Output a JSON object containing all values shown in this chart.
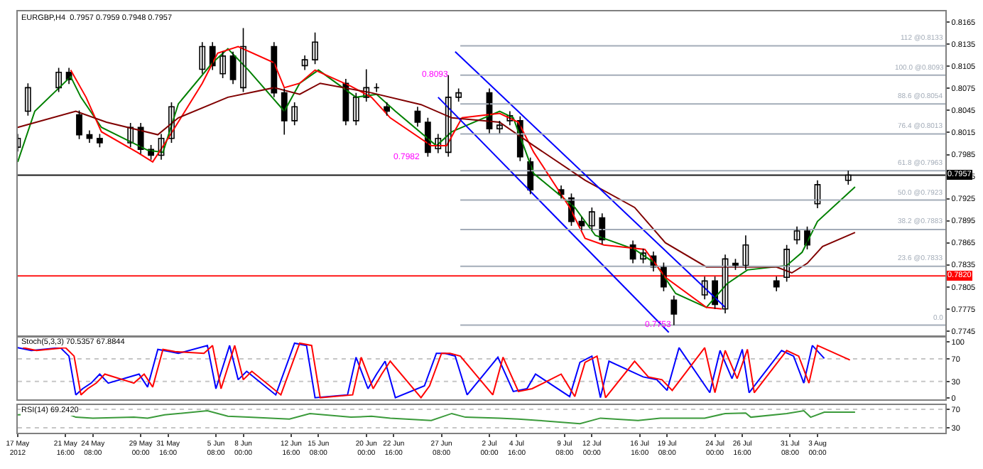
{
  "chart_data": [
    {
      "type": "candlestick",
      "title": "EURGBP,H4  0.7957 0.7959 0.7948 0.7957",
      "xlim": [
        "2012-05-17T00:00",
        "2012-08-15T12:00"
      ],
      "ylim": [
        0.7739,
        0.818
      ],
      "tick_labels": "y",
      "yticks": [
        0.8165,
        0.8135,
        0.8105,
        0.8075,
        0.8045,
        0.8015,
        0.7985,
        0.7955,
        0.7925,
        0.7895,
        0.7865,
        0.7835,
        0.7805,
        0.7775,
        0.7745
      ],
      "x": [
        "2012-05-17",
        "2012-05-18",
        "2012-05-21",
        "2012-05-22",
        "2012-05-23",
        "2012-05-24",
        "2012-05-25",
        "2012-05-28",
        "2012-05-29",
        "2012-05-30",
        "2012-05-31",
        "2012-06-01",
        "2012-06-04",
        "2012-06-05",
        "2012-06-06",
        "2012-06-07",
        "2012-06-08",
        "2012-06-11",
        "2012-06-12",
        "2012-06-13",
        "2012-06-14",
        "2012-06-15",
        "2012-06-18",
        "2012-06-19",
        "2012-06-20",
        "2012-06-21",
        "2012-06-22",
        "2012-06-25",
        "2012-06-26",
        "2012-06-27",
        "2012-06-28",
        "2012-06-29",
        "2012-07-02",
        "2012-07-03",
        "2012-07-04",
        "2012-07-05",
        "2012-07-06",
        "2012-07-09",
        "2012-07-10",
        "2012-07-11",
        "2012-07-12",
        "2012-07-13",
        "2012-07-16",
        "2012-07-17",
        "2012-07-18",
        "2012-07-19",
        "2012-07-20",
        "2012-07-23",
        "2012-07-24",
        "2012-07-25",
        "2012-07-26",
        "2012-07-27",
        "2012-07-30",
        "2012-07-31",
        "2012-08-01",
        "2012-08-02",
        "2012-08-03",
        "2012-08-06"
      ],
      "ohlc": [
        [
          0.7995,
          0.8013,
          0.7989,
          0.8007
        ],
        [
          0.8044,
          0.8082,
          0.8038,
          0.8076
        ],
        [
          0.8076,
          0.8103,
          0.807,
          0.8097
        ],
        [
          0.8097,
          0.8103,
          0.8081,
          0.8087
        ],
        [
          0.8039,
          0.8045,
          0.8006,
          0.8012
        ],
        [
          0.8012,
          0.8018,
          0.8001,
          0.8007
        ],
        [
          0.8007,
          0.8013,
          0.7995,
          0.8001
        ],
        [
          0.8001,
          0.8028,
          0.7995,
          0.8022
        ],
        [
          0.8022,
          0.8028,
          0.7986,
          0.7992
        ],
        [
          0.7992,
          0.7998,
          0.7978,
          0.7984
        ],
        [
          0.7984,
          0.8013,
          0.7978,
          0.8007
        ],
        [
          0.8007,
          0.8056,
          0.8001,
          0.805
        ],
        [
          0.8101,
          0.8138,
          0.8095,
          0.8132
        ],
        [
          0.8132,
          0.8138,
          0.81,
          0.8106
        ],
        [
          0.8095,
          0.8125,
          0.8089,
          0.8119
        ],
        [
          0.8119,
          0.8125,
          0.8081,
          0.8087
        ],
        [
          0.8076,
          0.8157,
          0.807,
          0.8132
        ],
        [
          0.8132,
          0.8138,
          0.8063,
          0.8069
        ],
        [
          0.8069,
          0.8075,
          0.8012,
          0.8031
        ],
        [
          0.8031,
          0.8056,
          0.8025,
          0.805
        ],
        [
          0.8106,
          0.812,
          0.81,
          0.8114
        ],
        [
          0.8114,
          0.8151,
          0.8108,
          0.8138
        ],
        [
          0.8082,
          0.8088,
          0.8025,
          0.8031
        ],
        [
          0.8031,
          0.8069,
          0.8025,
          0.8063
        ],
        [
          0.8063,
          0.8101,
          0.8057,
          0.8076
        ],
        [
          0.8076,
          0.8082,
          0.807,
          0.8076
        ],
        [
          0.805,
          0.8056,
          0.8038,
          0.8044
        ],
        [
          0.8044,
          0.805,
          0.8023,
          0.8029
        ],
        [
          0.8029,
          0.8035,
          0.7982,
          0.7988
        ],
        [
          0.7993,
          0.8013,
          0.7987,
          0.8007
        ],
        [
          0.7988,
          0.8093,
          0.7982,
          0.8063
        ],
        [
          0.8063,
          0.8075,
          0.8057,
          0.8069
        ],
        [
          0.8069,
          0.8075,
          0.8014,
          0.802
        ],
        [
          0.802,
          0.8031,
          0.8014,
          0.8025
        ],
        [
          0.8031,
          0.8044,
          0.8025,
          0.8038
        ],
        [
          0.8031,
          0.8037,
          0.7976,
          0.7982
        ],
        [
          0.7975,
          0.7981,
          0.7931,
          0.7937
        ],
        [
          0.7937,
          0.7943,
          0.7925,
          0.7931
        ],
        [
          0.7926,
          0.7932,
          0.7888,
          0.7894
        ],
        [
          0.7894,
          0.79,
          0.7882,
          0.7888
        ],
        [
          0.7888,
          0.7913,
          0.7882,
          0.7907
        ],
        [
          0.7899,
          0.7905,
          0.7863,
          0.7869
        ],
        [
          0.7862,
          0.7868,
          0.7837,
          0.7843
        ],
        [
          0.7843,
          0.7857,
          0.7837,
          0.7851
        ],
        [
          0.7847,
          0.7853,
          0.7826,
          0.7832
        ],
        [
          0.7832,
          0.7838,
          0.7799,
          0.7805
        ],
        [
          0.7787,
          0.7793,
          0.7753,
          0.7768
        ],
        [
          0.7794,
          0.7819,
          0.7788,
          0.7813
        ],
        [
          0.7813,
          0.7819,
          0.7775,
          0.7781
        ],
        [
          0.7775,
          0.7849,
          0.7769,
          0.7843
        ],
        [
          0.7837,
          0.7843,
          0.7828,
          0.7834
        ],
        [
          0.7834,
          0.7875,
          0.7828,
          0.7862
        ],
        [
          0.7813,
          0.7819,
          0.7799,
          0.7805
        ],
        [
          0.7818,
          0.7862,
          0.7812,
          0.7856
        ],
        [
          0.7869,
          0.7887,
          0.7863,
          0.7881
        ],
        [
          0.7881,
          0.7887,
          0.7856,
          0.7862
        ],
        [
          0.7918,
          0.795,
          0.7912,
          0.7944
        ],
        [
          0.795,
          0.7963,
          0.7944,
          0.7957
        ]
      ],
      "series": [
        {
          "type": "line",
          "color": "#008000",
          "x": [
            "2012-05-17T00:00",
            "2012-05-18T16:00",
            "2012-05-22T04:00",
            "2012-05-23T04:00",
            "2012-05-25T04:00",
            "2012-05-29T16:00",
            "2012-05-31T04:00",
            "2012-06-01T16:00",
            "2012-06-05T00:00",
            "2012-06-06T12:00",
            "2012-06-08T12:00",
            "2012-06-12T00:00",
            "2012-06-13T12:00",
            "2012-06-15T08:00",
            "2012-06-19T00:00",
            "2012-06-21T00:00",
            "2012-06-22T20:00",
            "2012-06-26T20:00",
            "2012-06-28T08:00",
            "2012-07-03T00:00",
            "2012-07-04T08:00",
            "2012-07-06T08:00",
            "2012-07-10T08:00",
            "2012-07-12T08:00",
            "2012-07-16T04:00",
            "2012-07-18T04:00",
            "2012-07-20T04:00",
            "2012-07-23T04:00",
            "2012-07-25T04:00",
            "2012-07-27T04:00",
            "2012-07-31T00:00",
            "2012-08-01T12:00",
            "2012-08-03T00:00",
            "2012-08-06T16:00"
          ],
          "values": [
            0.7975,
            0.8044,
            0.8091,
            0.8063,
            0.8022,
            0.7991,
            0.7988,
            0.8054,
            0.811,
            0.8129,
            0.81,
            0.8044,
            0.8082,
            0.81,
            0.8063,
            0.8067,
            0.8044,
            0.7997,
            0.8016,
            0.8044,
            0.8035,
            0.7959,
            0.7913,
            0.7875,
            0.7856,
            0.7837,
            0.7796,
            0.7777,
            0.7809,
            0.7828,
            0.7834,
            0.7852,
            0.7894,
            0.7941
          ]
        },
        {
          "type": "line",
          "color": "#ff0000",
          "x": [
            "2012-05-22T04:00",
            "2012-05-23T16:00",
            "2012-05-25T04:00",
            "2012-05-28T16:00",
            "2012-05-30T04:00",
            "2012-05-31T16:00",
            "2012-06-04T00:00",
            "2012-06-05T12:00",
            "2012-06-07T12:00",
            "2012-06-11T00:00",
            "2012-06-12T00:00",
            "2012-06-13T12:00",
            "2012-06-15T00:00",
            "2012-06-18T12:00",
            "2012-06-20T12:00",
            "2012-06-22T08:00",
            "2012-06-26T08:00",
            "2012-06-27T20:00",
            "2012-06-29T08:00",
            "2012-07-03T00:00",
            "2012-07-04T20:00",
            "2012-07-06T08:00",
            "2012-07-09T20:00",
            "2012-07-11T08:00",
            "2012-07-13T04:00",
            "2012-07-17T04:00",
            "2012-07-19T04:00",
            "2012-07-23T04:00",
            "2012-07-24T16:00"
          ],
          "values": [
            0.81,
            0.8063,
            0.8016,
            0.7988,
            0.7975,
            0.8007,
            0.8082,
            0.8123,
            0.8132,
            0.811,
            0.8076,
            0.8082,
            0.81,
            0.8078,
            0.8063,
            0.8035,
            0.7997,
            0.7997,
            0.8035,
            0.8041,
            0.8029,
            0.7988,
            0.7913,
            0.7871,
            0.7862,
            0.7856,
            0.7818,
            0.7777,
            0.7775
          ]
        },
        {
          "type": "line",
          "color": "#800000",
          "x": [
            "2012-05-17T00:00",
            "2012-05-22T16:00",
            "2012-05-25T16:00",
            "2012-05-30T16:00",
            "2012-06-01T16:00",
            "2012-06-06T12:00",
            "2012-06-11T00:00",
            "2012-06-13T12:00",
            "2012-06-15T12:00",
            "2012-06-20T12:00",
            "2012-06-25T08:00",
            "2012-06-28T08:00",
            "2012-07-03T00:00",
            "2012-07-06T08:00",
            "2012-07-11T08:00",
            "2012-07-16T04:00",
            "2012-07-19T04:00",
            "2012-07-23T04:00",
            "2012-07-25T04:00",
            "2012-07-30T00:00",
            "2012-07-31T12:00",
            "2012-08-02T00:00",
            "2012-08-03T12:00",
            "2012-08-06T16:00"
          ],
          "values": [
            0.8022,
            0.8044,
            0.8029,
            0.8012,
            0.8035,
            0.8063,
            0.8076,
            0.8067,
            0.8082,
            0.8069,
            0.8053,
            0.8035,
            0.8029,
            0.7997,
            0.795,
            0.7913,
            0.7865,
            0.7832,
            0.7832,
            0.7832,
            0.7824,
            0.7837,
            0.786,
            0.7879
          ]
        },
        {
          "type": "line",
          "color": "#0000ff",
          "x": [
            "2012-06-28T16:00",
            "2012-07-25T00:00"
          ],
          "values": [
            0.8125,
            0.7777
          ]
        },
        {
          "type": "line",
          "color": "#0000ff",
          "x": [
            "2012-06-27T00:00",
            "2012-07-19T12:00"
          ],
          "values": [
            0.8063,
            0.7743
          ]
        },
        {
          "type": "line",
          "color": "#a3acb8",
          "name": "0.0",
          "x": [
            "2012-06-29T04:00",
            "2012-08-15T12:00"
          ],
          "values": [
            0.7753,
            0.7753
          ]
        },
        {
          "type": "line",
          "color": "#a3acb8",
          "name": "23.6 @0.7833",
          "x": [
            "2012-06-29T04:00",
            "2012-08-15T12:00"
          ],
          "values": [
            0.7833,
            0.7833
          ]
        },
        {
          "type": "line",
          "color": "#a3acb8",
          "name": "38.2 @0.7883",
          "x": [
            "2012-06-29T04:00",
            "2012-08-15T12:00"
          ],
          "values": [
            0.7883,
            0.7883
          ]
        },
        {
          "type": "line",
          "color": "#a3acb8",
          "name": "50.0 @0.7923",
          "x": [
            "2012-06-29T04:00",
            "2012-08-15T12:00"
          ],
          "values": [
            0.7923,
            0.7923
          ]
        },
        {
          "type": "line",
          "color": "#a3acb8",
          "name": "61.8 @0.7963",
          "x": [
            "2012-06-29T04:00",
            "2012-08-15T12:00"
          ],
          "values": [
            0.7963,
            0.7963
          ]
        },
        {
          "type": "line",
          "color": "#a3acb8",
          "name": "76.4 @0.8013",
          "x": [
            "2012-06-29T04:00",
            "2012-08-15T12:00"
          ],
          "values": [
            0.8013,
            0.8013
          ]
        },
        {
          "type": "line",
          "color": "#a3acb8",
          "name": "88.6 @0.8054",
          "x": [
            "2012-06-29T04:00",
            "2012-08-15T12:00"
          ],
          "values": [
            0.8054,
            0.8054
          ]
        },
        {
          "type": "line",
          "color": "#a3acb8",
          "name": "100.0 @0.8093",
          "x": [
            "2012-06-29T04:00",
            "2012-08-15T12:00"
          ],
          "values": [
            0.8093,
            0.8093
          ]
        },
        {
          "type": "line",
          "color": "#a3acb8",
          "name": "112 @0.8133",
          "x": [
            "2012-06-29T04:00",
            "2012-08-15T12:00"
          ],
          "values": [
            0.8133,
            0.8133
          ]
        }
      ],
      "ref_lines": [
        {
          "axis": "y",
          "value": 0.782,
          "label": "0.7820",
          "color": "#ff0000"
        },
        {
          "axis": "y",
          "value": 0.7957,
          "label": "0.7957",
          "color": "#000000"
        }
      ],
      "annotations": [
        {
          "text": "0.8093",
          "x": "2012-06-28T20:00",
          "y": 0.8093
        },
        {
          "text": "0.7982",
          "x": "2012-06-26T04:00",
          "y": 0.7982
        },
        {
          "text": "0.7753",
          "x": "2012-07-20T16:00",
          "y": 0.7753
        }
      ]
    },
    {
      "type": "line",
      "title": "Stoch(5,3,3) 70.5357 67.8844",
      "xlim": [
        "2012-05-17T00:00",
        "2012-08-15T12:00"
      ],
      "ylim": [
        -2.4,
        108.7
      ],
      "yticks": [
        100,
        70,
        30,
        0
      ],
      "tick_labels": "y",
      "ref_lines": [
        {
          "axis": "y",
          "value": 70,
          "color": "#c0c0c0",
          "line_style": "dotted"
        },
        {
          "axis": "y",
          "value": 30,
          "color": "#c0c0c0",
          "line_style": "dotted"
        }
      ],
      "series": [
        {
          "color": "#0000ff",
          "x": [
            "2012-05-17T00:00",
            "2012-05-18T08:00",
            "2012-05-21T04:00",
            "2012-05-22T00:00",
            "2012-05-22T16:00",
            "2012-05-23T08:00",
            "2012-05-24T04:00",
            "2012-05-25T00:00",
            "2012-05-25T20:00",
            "2012-05-28T20:00",
            "2012-05-29T16:00",
            "2012-05-30T16:00",
            "2012-05-31T20:00",
            "2012-06-01T16:00",
            "2012-06-04T12:00",
            "2012-06-05T08:00",
            "2012-06-06T16:00",
            "2012-06-07T12:00",
            "2012-06-08T08:00",
            "2012-06-11T04:00",
            "2012-06-13T00:00",
            "2012-06-14T04:00",
            "2012-06-15T00:00",
            "2012-06-18T04:00",
            "2012-06-19T00:00",
            "2012-06-20T04:00",
            "2012-06-21T00:00",
            "2012-06-21T20:00",
            "2012-06-22T20:00",
            "2012-06-25T16:00",
            "2012-06-26T20:00",
            "2012-06-27T16:00",
            "2012-06-28T16:00",
            "2012-06-29T20:00",
            "2012-07-02T20:00",
            "2012-07-04T08:00",
            "2012-07-05T16:00",
            "2012-07-06T12:00",
            "2012-07-09T20:00",
            "2012-07-10T20:00",
            "2012-07-12T00:00",
            "2012-07-12T20:00",
            "2012-07-13T16:00",
            "2012-07-17T00:00",
            "2012-07-18T08:00",
            "2012-07-19T08:00",
            "2012-07-20T12:00",
            "2012-07-23T12:00",
            "2012-07-24T12:00",
            "2012-07-25T16:00",
            "2012-07-26T16:00",
            "2012-07-27T08:00",
            "2012-07-30T12:00",
            "2012-07-31T16:00",
            "2012-08-01T16:00",
            "2012-08-02T12:00",
            "2012-08-03T16:00"
          ],
          "values": [
            90,
            85,
            90,
            75,
            6,
            17,
            27,
            43,
            27,
            43,
            20,
            87,
            83,
            80,
            94,
            17,
            94,
            33,
            48,
            6,
            98,
            94,
            1,
            6,
            73,
            17,
            43,
            66,
            1,
            22,
            80,
            80,
            75,
            6,
            73,
            12,
            17,
            43,
            3,
            64,
            75,
            1,
            66,
            38,
            33,
            14,
            90,
            10,
            85,
            35,
            87,
            10,
            85,
            75,
            27,
            94,
            71
          ]
        },
        {
          "color": "#ff0000",
          "x": [
            "2012-05-17T12:00",
            "2012-05-18T20:00",
            "2012-05-21T16:00",
            "2012-05-22T12:00",
            "2012-05-23T04:00",
            "2012-05-23T20:00",
            "2012-05-24T16:00",
            "2012-05-25T12:00",
            "2012-05-28T08:00",
            "2012-05-29T08:00",
            "2012-05-30T04:00",
            "2012-05-31T04:00",
            "2012-06-01T08:00",
            "2012-06-04T04:00",
            "2012-06-05T00:00",
            "2012-06-05T20:00",
            "2012-06-07T04:00",
            "2012-06-08T00:00",
            "2012-06-08T20:00",
            "2012-06-11T16:00",
            "2012-06-13T12:00",
            "2012-06-14T16:00",
            "2012-06-15T12:00",
            "2012-06-18T16:00",
            "2012-06-19T12:00",
            "2012-06-20T16:00",
            "2012-06-21T12:00",
            "2012-06-22T08:00",
            "2012-06-25T08:00",
            "2012-06-26T04:00",
            "2012-06-27T08:00",
            "2012-06-28T04:00",
            "2012-06-29T04:00",
            "2012-07-02T08:00",
            "2012-07-03T08:00",
            "2012-07-04T20:00",
            "2012-07-06T04:00",
            "2012-07-09T00:00",
            "2012-07-10T08:00",
            "2012-07-11T08:00",
            "2012-07-12T12:00",
            "2012-07-13T08:00",
            "2012-07-16T04:00",
            "2012-07-17T12:00",
            "2012-07-18T20:00",
            "2012-07-19T20:00",
            "2012-07-23T00:00",
            "2012-07-24T00:00",
            "2012-07-25T00:00",
            "2012-07-26T04:00",
            "2012-07-27T04:00",
            "2012-07-27T20:00",
            "2012-07-31T00:00",
            "2012-08-01T04:00",
            "2012-08-02T04:00",
            "2012-08-03T00:00",
            "2012-08-06T04:00"
          ],
          "values": [
            90,
            85,
            90,
            75,
            6,
            17,
            27,
            43,
            27,
            43,
            20,
            87,
            83,
            80,
            94,
            17,
            94,
            33,
            48,
            6,
            98,
            94,
            1,
            6,
            73,
            17,
            43,
            66,
            1,
            22,
            80,
            80,
            75,
            6,
            73,
            12,
            17,
            43,
            3,
            64,
            75,
            1,
            66,
            38,
            33,
            14,
            90,
            10,
            85,
            35,
            87,
            10,
            85,
            75,
            27,
            94,
            68
          ]
        }
      ]
    },
    {
      "type": "line",
      "title": "RSI(14) 69.2420",
      "xlim": [
        "2012-05-17T00:00",
        "2012-08-15T12:00"
      ],
      "ylim": [
        20,
        79
      ],
      "yticks": [
        70,
        30
      ],
      "xticks": [
        {
          "value": "2012-05-17T00:00",
          "label": "17 May 2012"
        },
        {
          "value": "2012-05-21T16:00",
          "label": "21 May 16:00"
        },
        {
          "value": "2012-05-24T08:00",
          "label": "24 May 08:00"
        },
        {
          "value": "2012-05-29T00:00",
          "label": "29 May 00:00"
        },
        {
          "value": "2012-05-31T16:00",
          "label": "31 May 16:00"
        },
        {
          "value": "2012-06-05T08:00",
          "label": "5 Jun 08:00"
        },
        {
          "value": "2012-06-08T00:00",
          "label": "8 Jun 00:00"
        },
        {
          "value": "2012-06-12T16:00",
          "label": "12 Jun 16:00"
        },
        {
          "value": "2012-06-15T08:00",
          "label": "15 Jun 08:00"
        },
        {
          "value": "2012-06-20T00:00",
          "label": "20 Jun 00:00"
        },
        {
          "value": "2012-06-22T16:00",
          "label": "22 Jun 16:00"
        },
        {
          "value": "2012-06-27T08:00",
          "label": "27 Jun 08:00"
        },
        {
          "value": "2012-07-02T00:00",
          "label": "2 Jul 00:00"
        },
        {
          "value": "2012-07-04T16:00",
          "label": "4 Jul 16:00"
        },
        {
          "value": "2012-07-09T08:00",
          "label": "9 Jul 08:00"
        },
        {
          "value": "2012-07-12T00:00",
          "label": "12 Jul 00:00"
        },
        {
          "value": "2012-07-16T16:00",
          "label": "16 Jul 16:00"
        },
        {
          "value": "2012-07-19T08:00",
          "label": "19 Jul 08:00"
        },
        {
          "value": "2012-07-24T00:00",
          "label": "24 Jul 00:00"
        },
        {
          "value": "2012-07-26T16:00",
          "label": "26 Jul 16:00"
        },
        {
          "value": "2012-07-31T08:00",
          "label": "31 Jul 08:00"
        },
        {
          "value": "2012-08-03T00:00",
          "label": "3 Aug 00:00"
        }
      ],
      "ref_lines": [
        {
          "axis": "y",
          "value": 70,
          "color": "#c0c0c0",
          "line_style": "dotted"
        },
        {
          "axis": "y",
          "value": 30,
          "color": "#c0c0c0",
          "line_style": "dotted"
        }
      ],
      "series": [
        {
          "color": "#3a9a3a",
          "x": [
            "2012-05-17T00:00",
            "2012-05-21T16:00",
            "2012-05-22T16:00",
            "2012-05-24T08:00",
            "2012-05-28T08:00",
            "2012-05-29T16:00",
            "2012-05-31T08:00",
            "2012-06-04T12:00",
            "2012-06-06T12:00",
            "2012-06-08T12:00",
            "2012-06-12T12:00",
            "2012-06-14T12:00",
            "2012-06-18T12:00",
            "2012-06-20T12:00",
            "2012-06-22T08:00",
            "2012-06-26T08:00",
            "2012-06-28T08:00",
            "2012-06-29T16:00",
            "2012-07-03T00:00",
            "2012-07-04T20:00",
            "2012-07-06T20:00",
            "2012-07-10T20:00",
            "2012-07-12T20:00",
            "2012-07-16T12:00",
            "2012-07-18T16:00",
            "2012-07-23T00:00",
            "2012-07-25T00:00",
            "2012-07-27T00:00",
            "2012-07-27T12:00",
            "2012-07-31T00:00",
            "2012-08-01T16:00",
            "2012-08-02T08:00",
            "2012-08-03T16:00",
            "2012-08-06T16:00"
          ],
          "values": [
            58,
            62,
            53,
            51,
            53,
            51,
            58,
            67,
            55,
            53,
            49,
            61,
            53,
            55,
            51,
            46,
            61,
            53,
            51,
            49,
            46,
            39,
            51,
            46,
            51,
            51,
            61,
            62,
            53,
            61,
            67,
            53,
            64,
            64
          ]
        }
      ]
    }
  ]
}
